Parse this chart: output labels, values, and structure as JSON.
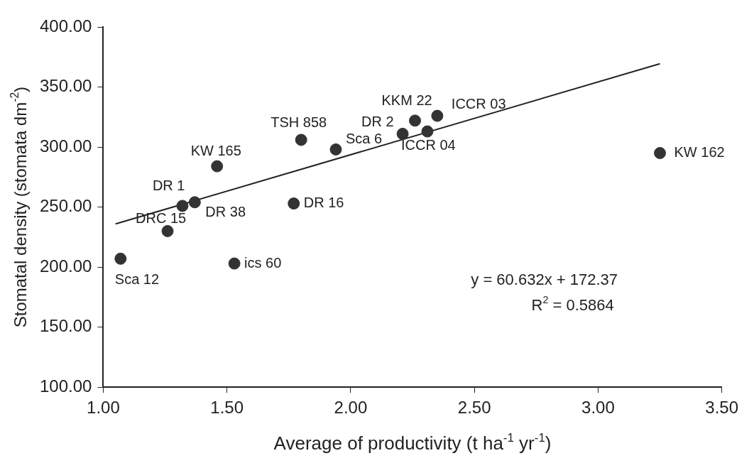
{
  "chart_data": {
    "type": "scatter",
    "xlabel": "Average of productivity (t ha$^{-1}$ yr$^{-1}$)",
    "ylabel": "Stomatal density (stomata dm$^{-2}$)",
    "xlim": [
      1,
      3.5
    ],
    "ylim": [
      100,
      400
    ],
    "xticks": [
      {
        "value": 1,
        "label": "1.00"
      },
      {
        "value": 1.5,
        "label": "1.50"
      },
      {
        "value": 2,
        "label": "2.00"
      },
      {
        "value": 2.5,
        "label": "2.50"
      },
      {
        "value": 3,
        "label": "3.00"
      },
      {
        "value": 3.5,
        "label": "3.50"
      }
    ],
    "yticks": [
      {
        "value": 100,
        "label": "100.00"
      },
      {
        "value": 150,
        "label": "150.00"
      },
      {
        "value": 200,
        "label": "200.00"
      },
      {
        "value": 250,
        "label": "250.00"
      },
      {
        "value": 300,
        "label": "300.00"
      },
      {
        "value": 350,
        "label": "350.00"
      },
      {
        "value": 400,
        "label": "400.00"
      }
    ],
    "marker": "circle",
    "legend": false,
    "series": [
      {
        "color": "#333333",
        "x": [
          1.07,
          1.26,
          1.32,
          1.37,
          1.46,
          1.53,
          1.77,
          1.8,
          1.94,
          2.21,
          2.26,
          2.31,
          2.35,
          3.25
        ],
        "values": [
          207,
          230,
          251,
          254,
          284,
          203,
          253,
          306,
          298,
          311,
          322,
          313,
          326,
          295
        ]
      },
      {
        "type": "line",
        "marker": "none",
        "color": "#222222",
        "x": [
          1.05,
          3.25
        ],
        "values": [
          236.0,
          369.4
        ]
      }
    ],
    "annotations": [
      {
        "text": "Sca 12",
        "x": 1.07,
        "y": 207
      },
      {
        "text": "DRC 15",
        "x": 1.26,
        "y": 230
      },
      {
        "text": "DR 1",
        "x": 1.32,
        "y": 251
      },
      {
        "text": "DR 38",
        "x": 1.37,
        "y": 254
      },
      {
        "text": "KW 165",
        "x": 1.46,
        "y": 284
      },
      {
        "text": "ics 60",
        "x": 1.53,
        "y": 203
      },
      {
        "text": "DR 16",
        "x": 1.77,
        "y": 253
      },
      {
        "text": "TSH 858",
        "x": 1.8,
        "y": 306
      },
      {
        "text": "Sca 6",
        "x": 1.94,
        "y": 298
      },
      {
        "text": "DR 2",
        "x": 2.21,
        "y": 311
      },
      {
        "text": "KKM 22",
        "x": 2.26,
        "y": 322
      },
      {
        "text": "ICCR 04",
        "x": 2.31,
        "y": 313
      },
      {
        "text": "ICCR 03",
        "x": 2.35,
        "y": 326
      },
      {
        "text": "KW 162",
        "x": 3.25,
        "y": 295
      },
      "y = 60.632x + 172.37",
      "R$^{2}$ = 0.5864"
    ]
  }
}
